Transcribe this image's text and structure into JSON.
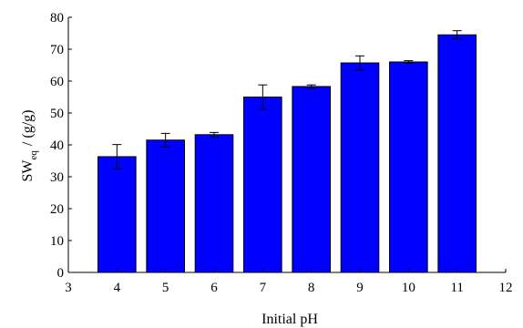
{
  "chart_data": {
    "type": "bar",
    "title": "",
    "xlabel": "Initial pH",
    "ylabel": {
      "main": "SW",
      "subscript": "eq",
      "rest": "/ (g/g)"
    },
    "x": [
      4,
      5,
      6,
      7,
      8,
      9,
      10,
      11
    ],
    "values": [
      36.3,
      41.5,
      43.2,
      55.0,
      58.3,
      65.7,
      66.0,
      74.5
    ],
    "errors": [
      3.8,
      2.1,
      0.7,
      3.8,
      0.5,
      2.2,
      0.4,
      1.3
    ],
    "xlim": [
      3,
      12
    ],
    "ylim": [
      0,
      80
    ],
    "xticks": [
      3,
      4,
      5,
      6,
      7,
      8,
      9,
      10,
      11,
      12
    ],
    "yticks": [
      0,
      10,
      20,
      30,
      40,
      50,
      60,
      70,
      80
    ],
    "bar_color": "#0000ff",
    "bar_edge_color": "#000000",
    "grid": false,
    "legend": "none"
  }
}
